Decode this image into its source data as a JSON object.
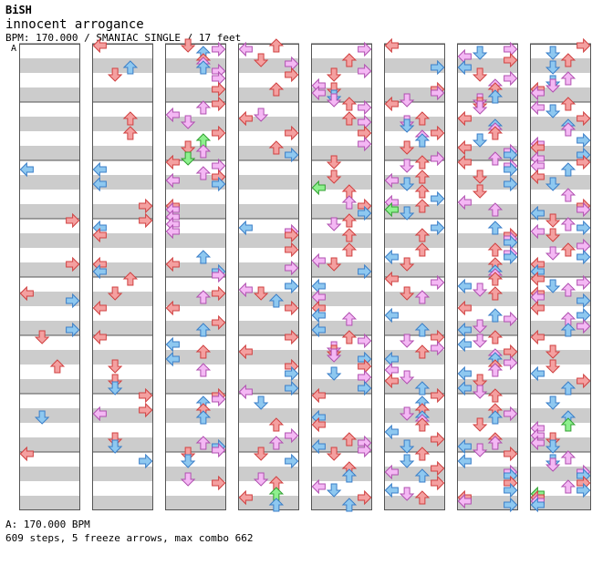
{
  "header": {
    "artist": "BiSH",
    "title": "innocent arrogance",
    "meta": "BPM: 170.000 / SMANIAC SINGLE / 17 feet",
    "bpm_marker": "A"
  },
  "chart_data": {
    "type": "table",
    "lanes": [
      "left",
      "down",
      "up",
      "right"
    ],
    "columns": 8,
    "measures_per_column": 8,
    "colors": {
      "quarter": "#f4a0a0",
      "quarter_stroke": "#d04040",
      "eighth": "#8ec8f0",
      "eighth_stroke": "#3a7ec8",
      "sixteenth": "#f4b8f4",
      "sixteenth_stroke": "#b050b0",
      "freeze": "#8ef08e",
      "freeze_stroke": "#30a030",
      "band": "#cccccc",
      "border": "#555555"
    }
  },
  "footer": {
    "bpm_line": "A: 170.000 BPM",
    "stats_line": "609 steps, 5 freeze arrows, max combo 662"
  }
}
